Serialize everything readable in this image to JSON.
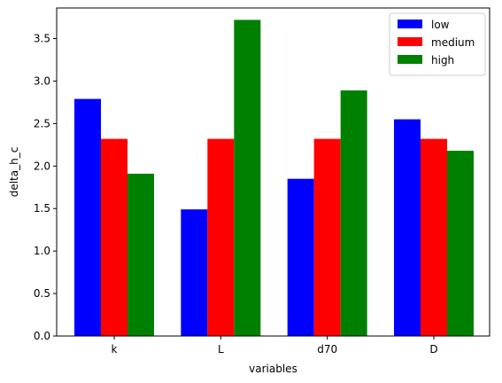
{
  "chart_data": {
    "type": "bar",
    "title": "",
    "xlabel": "variables",
    "ylabel": "delta_h_c",
    "categories": [
      "k",
      "L",
      "d70",
      "D"
    ],
    "series": [
      {
        "name": "low",
        "color": "#0000ff",
        "values": [
          2.79,
          1.49,
          1.85,
          2.55
        ]
      },
      {
        "name": "medium",
        "color": "#ff0000",
        "values": [
          2.32,
          2.32,
          2.32,
          2.32
        ]
      },
      {
        "name": "high",
        "color": "#008000",
        "values": [
          1.91,
          3.72,
          2.89,
          2.18
        ]
      }
    ],
    "ylim": [
      0,
      3.86
    ],
    "yticks": [
      "0.0",
      "0.5",
      "1.0",
      "1.5",
      "2.0",
      "2.5",
      "3.0",
      "3.5"
    ],
    "grid": false,
    "legend_position": "top-right"
  }
}
